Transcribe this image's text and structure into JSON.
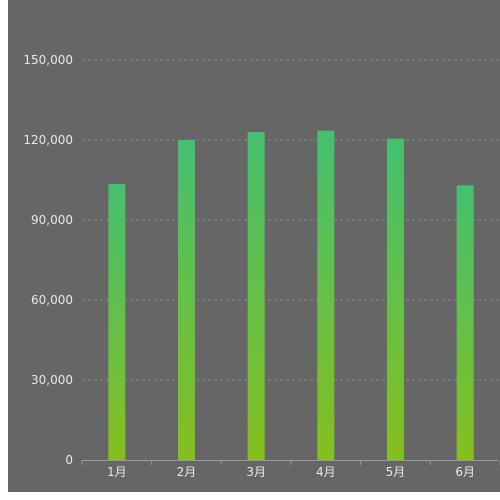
{
  "chart_data": {
    "type": "bar",
    "categories": [
      "1月",
      "2月",
      "3月",
      "4月",
      "5月",
      "6月"
    ],
    "values": [
      103500,
      120000,
      123000,
      123500,
      120500,
      103000
    ],
    "y_ticks": [
      "0",
      "30,000",
      "60,000",
      "90,000",
      "120,000",
      "150,000"
    ],
    "ylim": [
      0,
      150000
    ],
    "grid": true,
    "colors": {
      "background": "#666666",
      "bar_top": "#44c071",
      "bar_bottom": "#86bf1e"
    }
  }
}
